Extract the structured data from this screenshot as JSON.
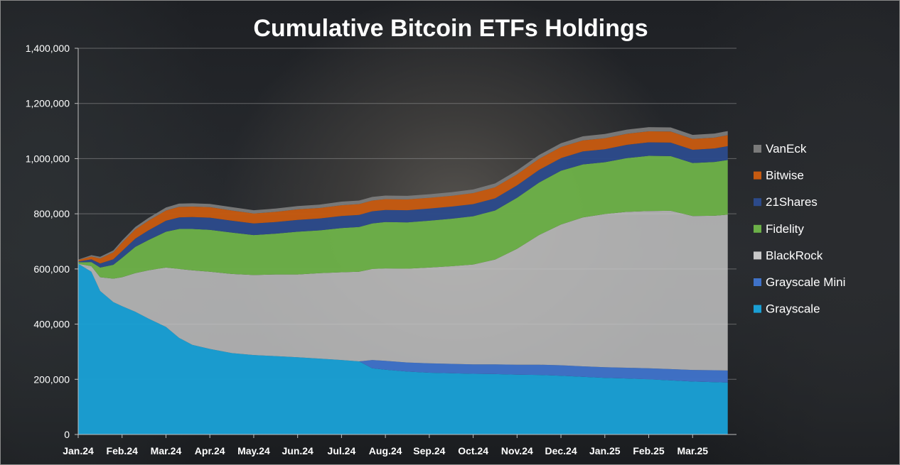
{
  "chart_data": {
    "type": "area",
    "stacked": true,
    "title": "Cumulative Bitcoin ETFs Holdings",
    "xlabel": "",
    "ylabel": "",
    "ylim": [
      0,
      1400000
    ],
    "yticks": [
      0,
      200000,
      400000,
      600000,
      800000,
      1000000,
      1200000,
      1400000
    ],
    "ytick_labels": [
      "0",
      "200,000",
      "400,000",
      "600,000",
      "800,000",
      "1,000,000",
      "1,200,000",
      "1,400,000"
    ],
    "x_tick_labels": [
      "Jan.24",
      "Feb.24",
      "Mar.24",
      "Apr.24",
      "May.24",
      "Jun.24",
      "Jul.24",
      "Aug.24",
      "Sep.24",
      "Oct.24",
      "Nov.24",
      "Dec.24",
      "Jan.25",
      "Feb.25",
      "Mar.25"
    ],
    "x_tick_positions": [
      0,
      1,
      2,
      3,
      4,
      5,
      6,
      7,
      8,
      9,
      10,
      11,
      12,
      13,
      14
    ],
    "xlim": [
      0,
      15
    ],
    "grid": true,
    "legend_position": "right",
    "x": [
      0,
      0.3,
      0.5,
      0.8,
      1.0,
      1.3,
      1.6,
      2.0,
      2.3,
      2.6,
      3.0,
      3.5,
      4.0,
      4.5,
      5.0,
      5.5,
      6.0,
      6.4,
      6.7,
      7.0,
      7.5,
      8.0,
      8.5,
      9.0,
      9.5,
      10.0,
      10.5,
      11.0,
      11.5,
      12.0,
      12.5,
      13.0,
      13.5,
      14.0,
      14.5,
      14.8
    ],
    "series": [
      {
        "name": "Grayscale",
        "color": "#1a9fd4",
        "values": [
          619000,
          590000,
          520000,
          480000,
          465000,
          445000,
          420000,
          390000,
          350000,
          325000,
          310000,
          295000,
          288000,
          284000,
          280000,
          275000,
          270000,
          265000,
          240000,
          235000,
          228000,
          224000,
          222000,
          220000,
          219000,
          217000,
          216000,
          213000,
          209000,
          205000,
          203000,
          200000,
          196000,
          192000,
          190000,
          188000
        ]
      },
      {
        "name": "Grayscale Mini",
        "color": "#3f72c8",
        "values": [
          0,
          0,
          0,
          0,
          0,
          0,
          0,
          0,
          0,
          0,
          0,
          0,
          0,
          0,
          0,
          0,
          0,
          0,
          30000,
          32000,
          33000,
          34000,
          34000,
          34000,
          35000,
          36000,
          37000,
          38000,
          38000,
          39000,
          39000,
          40000,
          41000,
          42000,
          43000,
          44000
        ]
      },
      {
        "name": "BlackRock",
        "color": "#c8c8c8",
        "values": [
          0,
          20000,
          50000,
          85000,
          105000,
          140000,
          175000,
          215000,
          250000,
          270000,
          280000,
          287000,
          290000,
          296000,
          300000,
          310000,
          318000,
          325000,
          330000,
          335000,
          340000,
          347000,
          354000,
          362000,
          380000,
          420000,
          470000,
          510000,
          540000,
          555000,
          565000,
          570000,
          574000,
          558000,
          560000,
          565000
        ]
      },
      {
        "name": "Fidelity",
        "color": "#6cb048",
        "values": [
          5000,
          15000,
          35000,
          50000,
          70000,
          95000,
          110000,
          130000,
          145000,
          150000,
          152000,
          150000,
          145000,
          148000,
          155000,
          155000,
          160000,
          162000,
          165000,
          168000,
          168000,
          170000,
          172000,
          175000,
          178000,
          185000,
          190000,
          195000,
          192000,
          188000,
          195000,
          200000,
          198000,
          192000,
          195000,
          198000
        ]
      },
      {
        "name": "21Shares",
        "color": "#2c4a8a",
        "values": [
          3000,
          10000,
          15000,
          20000,
          25000,
          30000,
          35000,
          40000,
          42000,
          43000,
          44000,
          43000,
          42000,
          42000,
          43000,
          43000,
          44000,
          44000,
          44000,
          44000,
          44000,
          44000,
          44000,
          44000,
          44000,
          45000,
          46000,
          46000,
          47000,
          47000,
          48000,
          49000,
          49000,
          48000,
          49000,
          50000
        ]
      },
      {
        "name": "Bitwise",
        "color": "#c55a11",
        "values": [
          5000,
          10000,
          18000,
          25000,
          30000,
          33000,
          35000,
          37000,
          38000,
          38000,
          38000,
          37000,
          36000,
          37000,
          38000,
          38000,
          39000,
          39000,
          39000,
          39000,
          39000,
          39000,
          39000,
          40000,
          40000,
          40000,
          40000,
          40000,
          40000,
          40000,
          40000,
          40000,
          40000,
          39000,
          39000,
          40000
        ]
      },
      {
        "name": "VanEck",
        "color": "#7a7a7a",
        "values": [
          2000,
          5000,
          6000,
          7000,
          8000,
          9000,
          10000,
          11000,
          12000,
          12000,
          12000,
          12000,
          12000,
          12000,
          12000,
          12000,
          13000,
          13000,
          13000,
          13000,
          13000,
          13000,
          13000,
          13000,
          14000,
          14000,
          14000,
          14000,
          15000,
          15000,
          15000,
          15000,
          15000,
          15000,
          15000,
          15000
        ]
      }
    ]
  }
}
